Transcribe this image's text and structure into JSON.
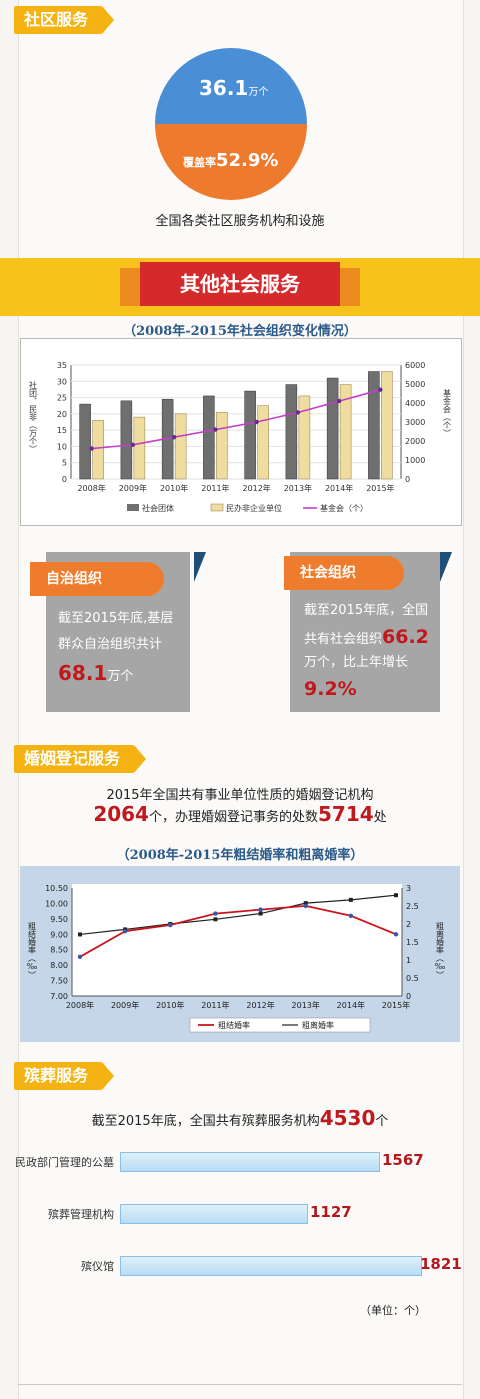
{
  "community": {
    "tag": "社区服务",
    "count_value": "36.1",
    "count_unit": "万个",
    "coverage_label": "覆盖率",
    "coverage_value": "52.9%",
    "caption": "全国各类社区服务机构和设施"
  },
  "other_services": {
    "banner": "其他社会服务",
    "chart_caption": "（2008年-2015年社会组织变化情况）"
  },
  "self_gov": {
    "title": "自治组织",
    "line1": "截至2015年底,基层",
    "line2": "群众自治组织共计",
    "value": "68.1",
    "unit": "万个"
  },
  "social_org": {
    "title": "社会组织",
    "line1": "截至2015年底，全国",
    "line2a": "共有社会组织",
    "value": "66.2",
    "line3": "万个，比上年增长",
    "growth": "9.2%"
  },
  "marriage": {
    "tag": "婚姻登记服务",
    "line1": "2015年全国共有事业单位性质的婚姻登记机构",
    "num1": "2064",
    "mid": "个，办理婚姻登记事务的处数",
    "num2": "5714",
    "tail": "处",
    "chart_caption": "（2008年-2015年粗结婚率和粗离婚率）"
  },
  "funeral": {
    "tag": "殡葬服务",
    "intro": "截至2015年底，全国共有殡葬服务机构",
    "total": "4530",
    "total_unit": "个",
    "unit_note": "（单位：个）"
  },
  "colors": {
    "blue": "#4a8fd6",
    "orange": "#ee7a2e",
    "red": "#d52a2c",
    "yellow": "#f5b313"
  },
  "chart_data": [
    {
      "type": "bar",
      "categories": [
        "2008年",
        "2009年",
        "2010年",
        "2011年",
        "2012年",
        "2013年",
        "2014年",
        "2015年"
      ],
      "series": [
        {
          "name": "社会团体",
          "axis": "left",
          "values": [
            23,
            24,
            24.5,
            25.5,
            27,
            29,
            31,
            33
          ]
        },
        {
          "name": "民办非企业单位",
          "axis": "left",
          "values": [
            18,
            19,
            20,
            20.5,
            22.5,
            25.5,
            29,
            33
          ]
        },
        {
          "name": "基金会（个）",
          "type": "line",
          "axis": "right",
          "values": [
            1600,
            1800,
            2200,
            2600,
            3000,
            3500,
            4100,
            4700
          ]
        }
      ],
      "ylabel": "社团、民非（万个）",
      "y2label": "基金会（个）",
      "ylim": [
        0,
        35
      ],
      "yticks": [
        0,
        5,
        10,
        15,
        20,
        25,
        30,
        35
      ],
      "y2lim": [
        0,
        6000
      ],
      "y2ticks": [
        0,
        1000,
        2000,
        3000,
        4000,
        5000,
        6000
      ],
      "legend": "bottom"
    },
    {
      "type": "line",
      "categories": [
        "2008年",
        "2009年",
        "2010年",
        "2011年",
        "2012年",
        "2013年",
        "2014年",
        "2015年"
      ],
      "series": [
        {
          "name": "粗结婚率",
          "axis": "left",
          "values": [
            8.27,
            9.1,
            9.3,
            9.67,
            9.8,
            9.92,
            9.6,
            9.0
          ]
        },
        {
          "name": "粗离婚率",
          "axis": "right",
          "values": [
            1.71,
            1.85,
            2.0,
            2.13,
            2.29,
            2.58,
            2.67,
            2.8
          ]
        }
      ],
      "ylabel": "粗结婚率（‰）",
      "y2label": "粗离婚率（‰）",
      "ylim": [
        7.0,
        10.5
      ],
      "yticks": [
        "7.00",
        "7.50",
        "8.00",
        "8.50",
        "9.00",
        "9.50",
        "10.00",
        "10.50"
      ],
      "y2lim": [
        0,
        3
      ],
      "y2ticks": [
        "0",
        "0.5",
        "1",
        "1.5",
        "2",
        "2.5",
        "3"
      ],
      "legend": "bottom"
    },
    {
      "type": "bar",
      "orientation": "horizontal",
      "categories": [
        "民政部门管理的公墓",
        "殡葬管理机构",
        "殡仪馆"
      ],
      "values": [
        1567,
        1127,
        1821
      ],
      "labels": [
        "1567",
        "1127",
        "1821"
      ]
    }
  ]
}
